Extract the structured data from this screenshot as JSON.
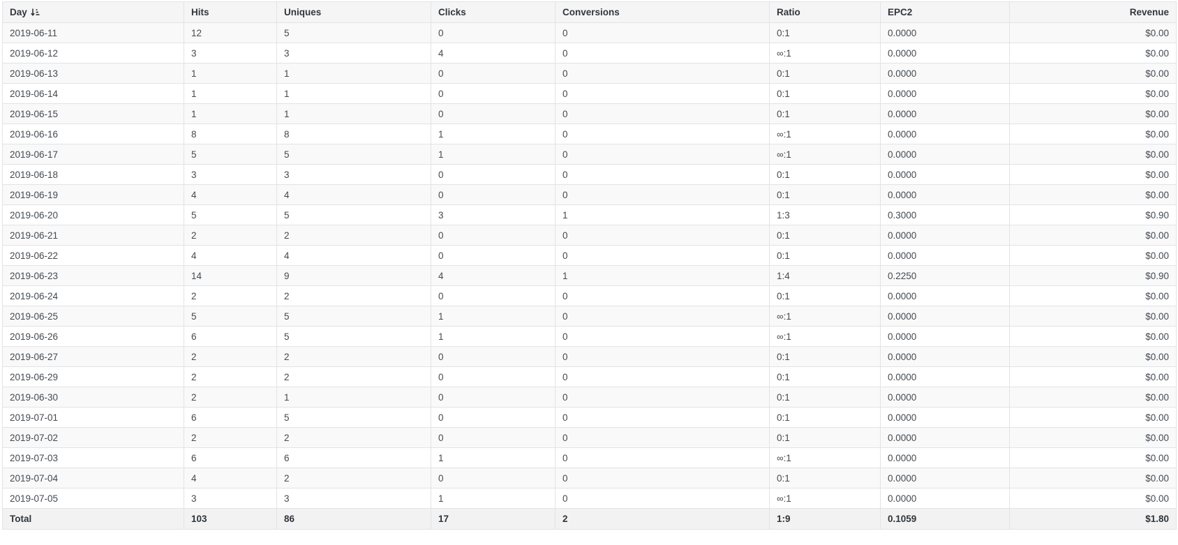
{
  "table": {
    "sorted_by": "Day",
    "sort_direction": "asc",
    "columns": [
      {
        "key": "day",
        "label": "Day"
      },
      {
        "key": "hits",
        "label": "Hits"
      },
      {
        "key": "uniques",
        "label": "Uniques"
      },
      {
        "key": "clicks",
        "label": "Clicks"
      },
      {
        "key": "conversions",
        "label": "Conversions"
      },
      {
        "key": "ratio",
        "label": "Ratio"
      },
      {
        "key": "epc2",
        "label": "EPC2"
      },
      {
        "key": "revenue",
        "label": "Revenue"
      }
    ],
    "rows": [
      [
        "2019-06-11",
        "12",
        "5",
        "0",
        "0",
        "0:1",
        "0.0000",
        "$0.00"
      ],
      [
        "2019-06-12",
        "3",
        "3",
        "4",
        "0",
        "∞:1",
        "0.0000",
        "$0.00"
      ],
      [
        "2019-06-13",
        "1",
        "1",
        "0",
        "0",
        "0:1",
        "0.0000",
        "$0.00"
      ],
      [
        "2019-06-14",
        "1",
        "1",
        "0",
        "0",
        "0:1",
        "0.0000",
        "$0.00"
      ],
      [
        "2019-06-15",
        "1",
        "1",
        "0",
        "0",
        "0:1",
        "0.0000",
        "$0.00"
      ],
      [
        "2019-06-16",
        "8",
        "8",
        "1",
        "0",
        "∞:1",
        "0.0000",
        "$0.00"
      ],
      [
        "2019-06-17",
        "5",
        "5",
        "1",
        "0",
        "∞:1",
        "0.0000",
        "$0.00"
      ],
      [
        "2019-06-18",
        "3",
        "3",
        "0",
        "0",
        "0:1",
        "0.0000",
        "$0.00"
      ],
      [
        "2019-06-19",
        "4",
        "4",
        "0",
        "0",
        "0:1",
        "0.0000",
        "$0.00"
      ],
      [
        "2019-06-20",
        "5",
        "5",
        "3",
        "1",
        "1:3",
        "0.3000",
        "$0.90"
      ],
      [
        "2019-06-21",
        "2",
        "2",
        "0",
        "0",
        "0:1",
        "0.0000",
        "$0.00"
      ],
      [
        "2019-06-22",
        "4",
        "4",
        "0",
        "0",
        "0:1",
        "0.0000",
        "$0.00"
      ],
      [
        "2019-06-23",
        "14",
        "9",
        "4",
        "1",
        "1:4",
        "0.2250",
        "$0.90"
      ],
      [
        "2019-06-24",
        "2",
        "2",
        "0",
        "0",
        "0:1",
        "0.0000",
        "$0.00"
      ],
      [
        "2019-06-25",
        "5",
        "5",
        "1",
        "0",
        "∞:1",
        "0.0000",
        "$0.00"
      ],
      [
        "2019-06-26",
        "6",
        "5",
        "1",
        "0",
        "∞:1",
        "0.0000",
        "$0.00"
      ],
      [
        "2019-06-27",
        "2",
        "2",
        "0",
        "0",
        "0:1",
        "0.0000",
        "$0.00"
      ],
      [
        "2019-06-29",
        "2",
        "2",
        "0",
        "0",
        "0:1",
        "0.0000",
        "$0.00"
      ],
      [
        "2019-06-30",
        "2",
        "1",
        "0",
        "0",
        "0:1",
        "0.0000",
        "$0.00"
      ],
      [
        "2019-07-01",
        "6",
        "5",
        "0",
        "0",
        "0:1",
        "0.0000",
        "$0.00"
      ],
      [
        "2019-07-02",
        "2",
        "2",
        "0",
        "0",
        "0:1",
        "0.0000",
        "$0.00"
      ],
      [
        "2019-07-03",
        "6",
        "6",
        "1",
        "0",
        "∞:1",
        "0.0000",
        "$0.00"
      ],
      [
        "2019-07-04",
        "4",
        "2",
        "0",
        "0",
        "0:1",
        "0.0000",
        "$0.00"
      ],
      [
        "2019-07-05",
        "3",
        "3",
        "1",
        "0",
        "∞:1",
        "0.0000",
        "$0.00"
      ]
    ],
    "total": [
      "Total",
      "103",
      "86",
      "17",
      "2",
      "1:9",
      "0.1059",
      "$1.80"
    ],
    "icons": {
      "day_sort": "sort-amount-asc-icon"
    }
  }
}
